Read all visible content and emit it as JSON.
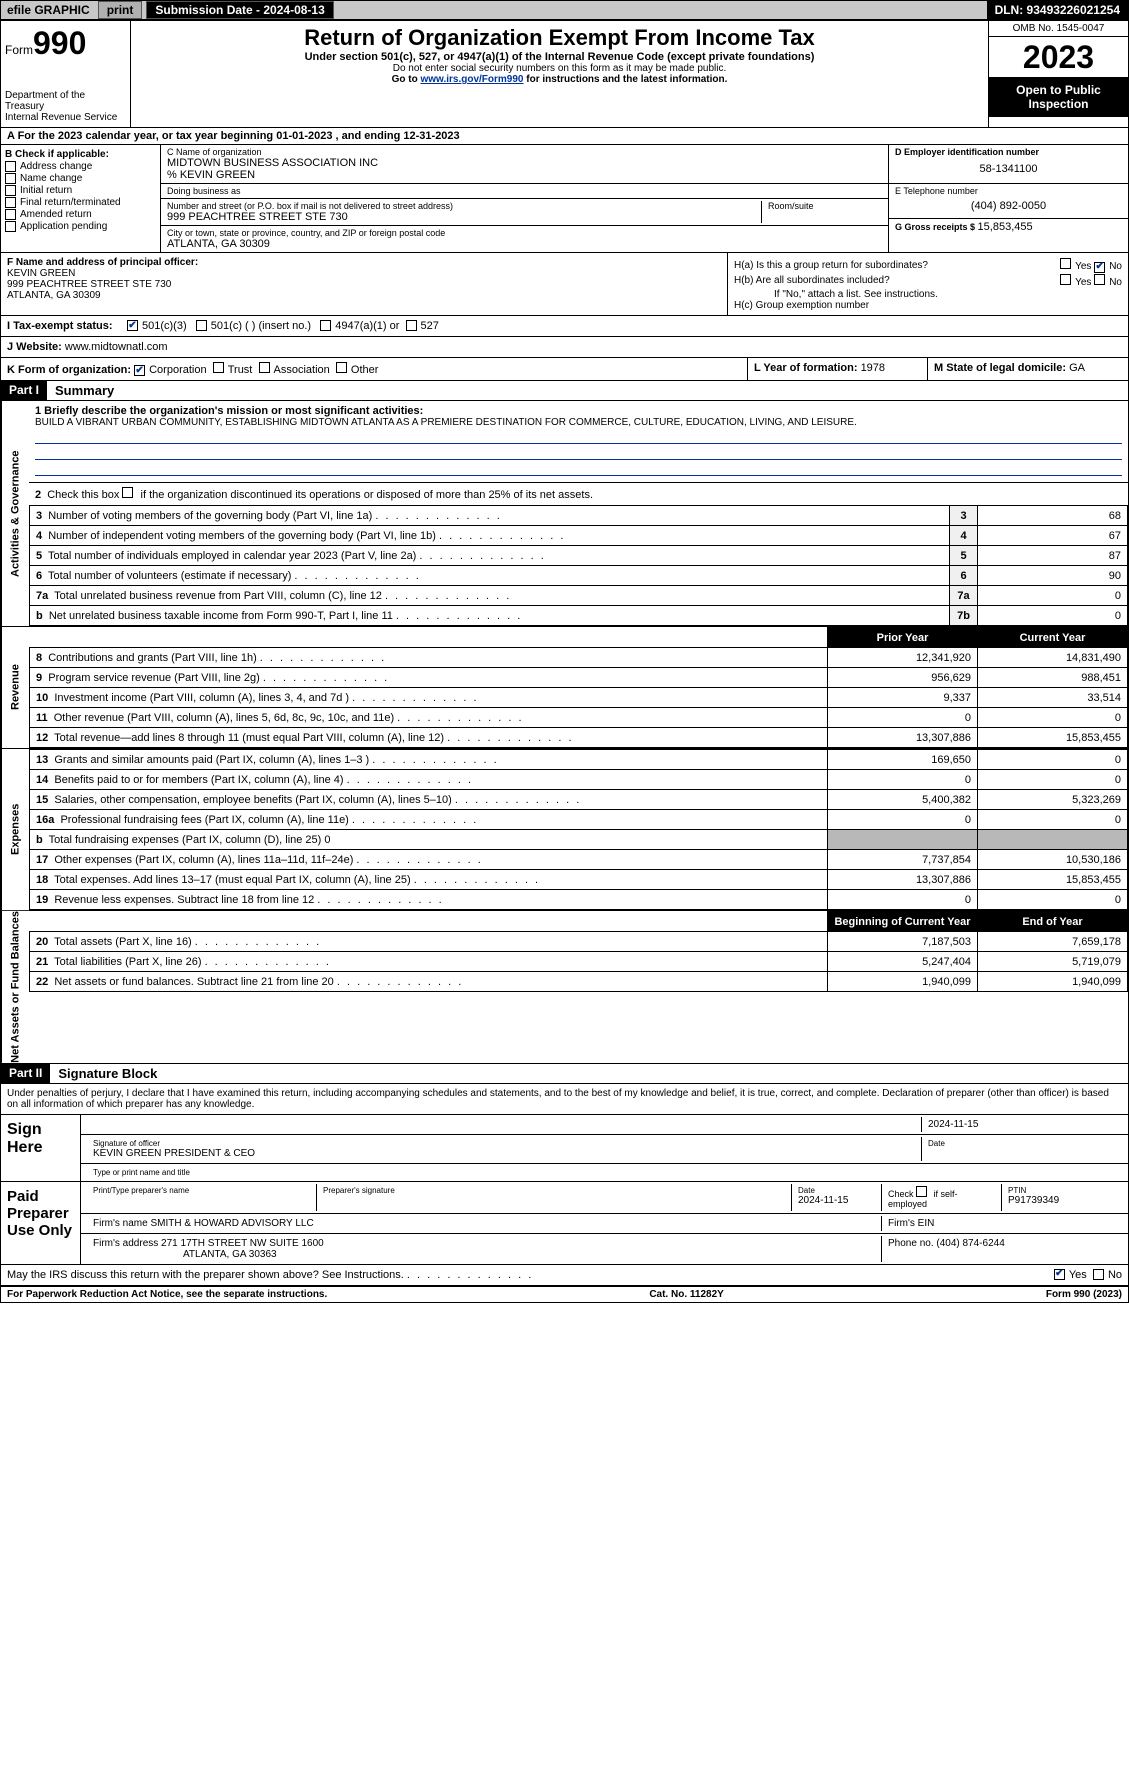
{
  "topbar": {
    "efile_label": "efile GRAPHIC",
    "print_btn": "print",
    "submission_label": "Submission Date - 2024-08-13",
    "dln_label": "DLN: 93493226021254"
  },
  "header": {
    "form_prefix": "Form",
    "form_number": "990",
    "dept": "Department of the Treasury",
    "irs": "Internal Revenue Service",
    "title": "Return of Organization Exempt From Income Tax",
    "sub": "Under section 501(c), 527, or 4947(a)(1) of the Internal Revenue Code (except private foundations)",
    "note1": "Do not enter social security numbers on this form as it may be made public.",
    "note2_prefix": "Go to ",
    "note2_link": "www.irs.gov/Form990",
    "note2_suffix": " for instructions and the latest information.",
    "omb": "OMB No. 1545-0047",
    "year": "2023",
    "inspection": "Open to Public Inspection"
  },
  "row_a": {
    "prefix": "A For the 2023 calendar year, or tax year beginning ",
    "begin": "01-01-2023",
    "mid": " , and ending ",
    "end": "12-31-2023"
  },
  "box_b": {
    "header": "B Check if applicable:",
    "items": [
      "Address change",
      "Name change",
      "Initial return",
      "Final return/terminated",
      "Amended return",
      "Application pending"
    ]
  },
  "box_c": {
    "name_lbl": "C Name of organization",
    "name": "MIDTOWN BUSINESS ASSOCIATION INC",
    "care_of": "% KEVIN GREEN",
    "dba_lbl": "Doing business as",
    "dba": "",
    "street_lbl": "Number and street (or P.O. box if mail is not delivered to street address)",
    "street": "999 PEACHTREE STREET STE 730",
    "room_lbl": "Room/suite",
    "room": "",
    "city_lbl": "City or town, state or province, country, and ZIP or foreign postal code",
    "city": "ATLANTA, GA  30309"
  },
  "box_d": {
    "ein_lbl": "D Employer identification number",
    "ein": "58-1341100",
    "tel_lbl": "E Telephone number",
    "tel": "(404) 892-0050",
    "gross_lbl": "G Gross receipts $ ",
    "gross": "15,853,455"
  },
  "box_f": {
    "lbl": "F Name and address of principal officer:",
    "name": "KEVIN GREEN",
    "addr1": "999 PEACHTREE STREET STE 730",
    "addr2": "ATLANTA, GA  30309"
  },
  "box_h": {
    "ha": "H(a)  Is this a group return for subordinates?",
    "hb": "H(b)  Are all subordinates included?",
    "hb_note": "If \"No,\" attach a list. See instructions.",
    "hc": "H(c)  Group exemption number ",
    "yes": "Yes",
    "no": "No"
  },
  "box_i": {
    "lbl": "I  Tax-exempt status:",
    "o1": "501(c)(3)",
    "o2": "501(c) (  ) (insert no.)",
    "o3": "4947(a)(1) or",
    "o4": "527"
  },
  "box_j": {
    "lbl": "J  Website: ",
    "val": "www.midtownatl.com"
  },
  "box_k": {
    "lbl": "K Form of organization:",
    "o1": "Corporation",
    "o2": "Trust",
    "o3": "Association",
    "o4": "Other"
  },
  "box_l": {
    "lbl": "L Year of formation: ",
    "val": "1978"
  },
  "box_m": {
    "lbl": "M State of legal domicile: ",
    "val": "GA"
  },
  "part1": {
    "hdr": "Part I",
    "title": "Summary",
    "vtab_ag": "Activities & Governance",
    "vtab_rev": "Revenue",
    "vtab_exp": "Expenses",
    "vtab_na": "Net Assets or Fund Balances",
    "line1_lbl": "1  Briefly describe the organization's mission or most significant activities:",
    "mission": "BUILD A VIBRANT URBAN COMMUNITY, ESTABLISHING MIDTOWN ATLANTA AS A PREMIERE DESTINATION FOR COMMERCE, CULTURE, EDUCATION, LIVING, AND LEISURE.",
    "line2": "2   Check this box      if the organization discontinued its operations or disposed of more than 25% of its net assets.",
    "lines_ag": [
      {
        "n": "3",
        "t": "Number of voting members of the governing body (Part VI, line 1a)",
        "k": "3",
        "v": "68"
      },
      {
        "n": "4",
        "t": "Number of independent voting members of the governing body (Part VI, line 1b)",
        "k": "4",
        "v": "67"
      },
      {
        "n": "5",
        "t": "Total number of individuals employed in calendar year 2023 (Part V, line 2a)",
        "k": "5",
        "v": "87"
      },
      {
        "n": "6",
        "t": "Total number of volunteers (estimate if necessary)",
        "k": "6",
        "v": "90"
      },
      {
        "n": "7a",
        "t": "Total unrelated business revenue from Part VIII, column (C), line 12",
        "k": "7a",
        "v": "0"
      },
      {
        "n": "b",
        "t": "Net unrelated business taxable income from Form 990-T, Part I, line 11",
        "k": "7b",
        "v": "0"
      }
    ],
    "col_prior": "Prior Year",
    "col_current": "Current Year",
    "lines_rev": [
      {
        "n": "8",
        "t": "Contributions and grants (Part VIII, line 1h)",
        "p": "12,341,920",
        "c": "14,831,490"
      },
      {
        "n": "9",
        "t": "Program service revenue (Part VIII, line 2g)",
        "p": "956,629",
        "c": "988,451"
      },
      {
        "n": "10",
        "t": "Investment income (Part VIII, column (A), lines 3, 4, and 7d )",
        "p": "9,337",
        "c": "33,514"
      },
      {
        "n": "11",
        "t": "Other revenue (Part VIII, column (A), lines 5, 6d, 8c, 9c, 10c, and 11e)",
        "p": "0",
        "c": "0"
      },
      {
        "n": "12",
        "t": "Total revenue—add lines 8 through 11 (must equal Part VIII, column (A), line 12)",
        "p": "13,307,886",
        "c": "15,853,455"
      }
    ],
    "lines_exp": [
      {
        "n": "13",
        "t": "Grants and similar amounts paid (Part IX, column (A), lines 1–3 )",
        "p": "169,650",
        "c": "0"
      },
      {
        "n": "14",
        "t": "Benefits paid to or for members (Part IX, column (A), line 4)",
        "p": "0",
        "c": "0"
      },
      {
        "n": "15",
        "t": "Salaries, other compensation, employee benefits (Part IX, column (A), lines 5–10)",
        "p": "5,400,382",
        "c": "5,323,269"
      },
      {
        "n": "16a",
        "t": "Professional fundraising fees (Part IX, column (A), line 11e)",
        "p": "0",
        "c": "0"
      },
      {
        "n": "b",
        "t": "Total fundraising expenses (Part IX, column (D), line 25) 0",
        "p": "",
        "c": "",
        "grey": true
      },
      {
        "n": "17",
        "t": "Other expenses (Part IX, column (A), lines 11a–11d, 11f–24e)",
        "p": "7,737,854",
        "c": "10,530,186"
      },
      {
        "n": "18",
        "t": "Total expenses. Add lines 13–17 (must equal Part IX, column (A), line 25)",
        "p": "13,307,886",
        "c": "15,853,455"
      },
      {
        "n": "19",
        "t": "Revenue less expenses. Subtract line 18 from line 12",
        "p": "0",
        "c": "0"
      }
    ],
    "col_begin": "Beginning of Current Year",
    "col_end": "End of Year",
    "lines_na": [
      {
        "n": "20",
        "t": "Total assets (Part X, line 16)",
        "p": "7,187,503",
        "c": "7,659,178"
      },
      {
        "n": "21",
        "t": "Total liabilities (Part X, line 26)",
        "p": "5,247,404",
        "c": "5,719,079"
      },
      {
        "n": "22",
        "t": "Net assets or fund balances. Subtract line 21 from line 20",
        "p": "1,940,099",
        "c": "1,940,099"
      }
    ]
  },
  "part2": {
    "hdr": "Part II",
    "title": "Signature Block",
    "decl": "Under penalties of perjury, I declare that I have examined this return, including accompanying schedules and statements, and to the best of my knowledge and belief, it is true, correct, and complete. Declaration of preparer (other than officer) is based on all information of which preparer has any knowledge.",
    "sign_here": "Sign Here",
    "sig_off_lbl": "Signature of officer",
    "sig_off": "KEVIN GREEN  PRESIDENT & CEO",
    "sig_type_lbl": "Type or print name and title",
    "date_lbl": "Date",
    "date1": "2024-11-15",
    "paid": "Paid Preparer Use Only",
    "prep_name_lbl": "Print/Type preparer's name",
    "prep_sig_lbl": "Preparer's signature",
    "date2": "2024-11-15",
    "check_lbl": "Check       if self-employed",
    "ptin_lbl": "PTIN",
    "ptin": "P91739349",
    "firm_name_lbl": "Firm's name  ",
    "firm_name": "SMITH & HOWARD ADVISORY LLC",
    "firm_ein_lbl": "Firm's EIN  ",
    "firm_addr_lbl": "Firm's address ",
    "firm_addr1": "271 17TH STREET NW SUITE 1600",
    "firm_addr2": "ATLANTA, GA  30363",
    "phone_lbl": "Phone no. ",
    "phone": "(404) 874-6244",
    "discuss": "May the IRS discuss this return with the preparer shown above? See Instructions.",
    "yes": "Yes",
    "no": "No"
  },
  "footer": {
    "left": "For Paperwork Reduction Act Notice, see the separate instructions.",
    "center": "Cat. No. 11282Y",
    "right": "Form 990 (2023)"
  }
}
